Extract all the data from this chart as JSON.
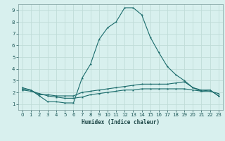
{
  "xlabel": "Humidex (Indice chaleur)",
  "x_ticks": [
    0,
    1,
    2,
    3,
    4,
    5,
    6,
    7,
    8,
    9,
    10,
    11,
    12,
    13,
    14,
    15,
    16,
    17,
    18,
    19,
    20,
    21,
    22,
    23
  ],
  "y_ticks": [
    1,
    2,
    3,
    4,
    5,
    6,
    7,
    8,
    9
  ],
  "xlim": [
    -0.5,
    23.5
  ],
  "ylim": [
    0.5,
    9.5
  ],
  "bg_color": "#d8f0ee",
  "grid_color": "#c0dcd8",
  "line_color": "#1a6b6b",
  "line1_x": [
    0,
    1,
    2,
    3,
    4,
    5,
    6,
    7,
    8,
    9,
    10,
    11,
    12,
    13,
    14,
    15,
    16,
    17,
    18,
    19,
    20,
    21,
    22,
    23
  ],
  "line1_y": [
    2.4,
    2.2,
    1.7,
    1.2,
    1.2,
    1.1,
    1.1,
    3.2,
    4.4,
    6.5,
    7.5,
    8.0,
    9.2,
    9.2,
    8.6,
    6.7,
    5.4,
    4.2,
    3.5,
    3.0,
    2.4,
    2.1,
    2.2,
    1.7
  ],
  "line2_x": [
    0,
    1,
    2,
    3,
    4,
    5,
    6,
    7,
    8,
    9,
    10,
    11,
    12,
    13,
    14,
    15,
    16,
    17,
    18,
    19,
    20,
    21,
    22,
    23
  ],
  "line2_y": [
    2.3,
    2.2,
    1.8,
    1.8,
    1.7,
    1.7,
    1.7,
    2.0,
    2.1,
    2.2,
    2.3,
    2.4,
    2.5,
    2.6,
    2.7,
    2.7,
    2.7,
    2.7,
    2.8,
    2.9,
    2.4,
    2.2,
    2.2,
    1.7
  ],
  "line3_x": [
    0,
    1,
    2,
    3,
    4,
    5,
    6,
    7,
    8,
    9,
    10,
    11,
    12,
    13,
    14,
    15,
    16,
    17,
    18,
    19,
    20,
    21,
    22,
    23
  ],
  "line3_y": [
    2.2,
    2.1,
    1.9,
    1.7,
    1.6,
    1.5,
    1.5,
    1.6,
    1.8,
    1.9,
    2.0,
    2.1,
    2.2,
    2.2,
    2.3,
    2.3,
    2.3,
    2.3,
    2.3,
    2.3,
    2.2,
    2.1,
    2.1,
    1.9
  ],
  "tick_color": "#1a5555",
  "xlabel_color": "#1a4444",
  "spine_color": "#7a9a9a"
}
